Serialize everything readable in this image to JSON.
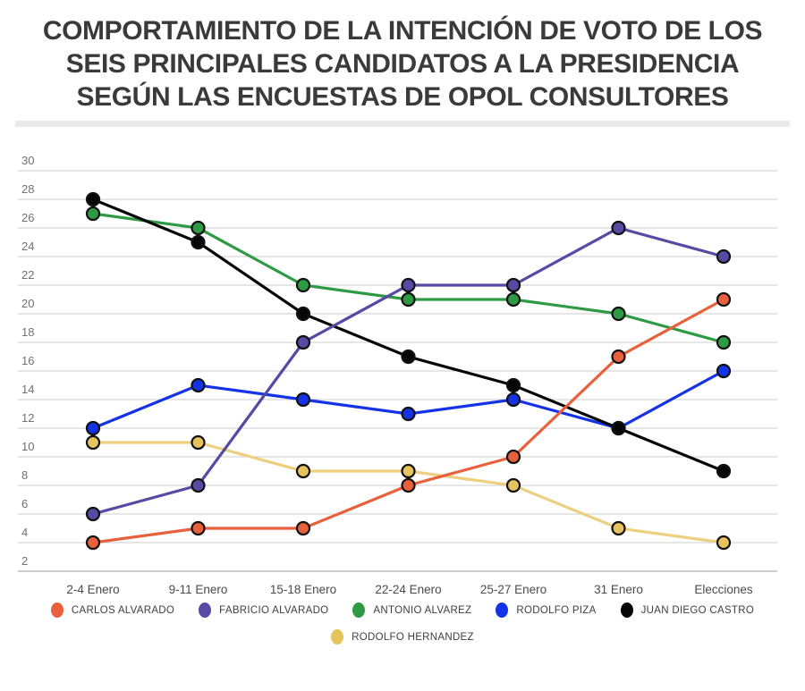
{
  "page": {
    "title": "COMPORTAMIENTO DE LA INTENCIÓN DE VOTO DE LOS\nSEIS PRINCIPALES CANDIDATOS A LA PRESIDENCIA\nSEGÚN LAS ENCUESTAS DE OPOL CONSULTORES"
  },
  "chart_data": {
    "type": "line",
    "title": "Comportamiento de la intención de voto de los seis principales candidatos a la presidencia según las encuestas de OPOL Consultores",
    "categories": [
      "2-4 Enero",
      "9-11 Enero",
      "15-18 Enero",
      "22-24 Enero",
      "25-27 Enero",
      "31 Enero",
      "Elecciones"
    ],
    "series": [
      {
        "name": "CARLOS ALVARADO",
        "color": "#E8613C",
        "values": [
          4,
          5,
          5,
          8,
          10,
          17,
          21
        ]
      },
      {
        "name": "FABRICIO ALVARADO",
        "color": "#564AA5",
        "values": [
          6,
          8,
          18,
          22,
          22,
          26,
          24
        ]
      },
      {
        "name": "ANTONIO ALVAREZ",
        "color": "#2E9B44",
        "values": [
          27,
          26,
          22,
          21,
          21,
          20,
          18
        ]
      },
      {
        "name": "RODOLFO PIZA",
        "color": "#1432E6",
        "values": [
          12,
          15,
          14,
          13,
          14,
          12,
          16
        ]
      },
      {
        "name": "JUAN DIEGO CASTRO",
        "color": "#060606",
        "values": [
          28,
          25,
          20,
          17,
          15,
          12,
          9
        ]
      },
      {
        "name": "RODOLFO HERNANDEZ",
        "color": "#E6C35D",
        "line_color": "#EDCF7F",
        "values": [
          11,
          11,
          9,
          9,
          8,
          5,
          4
        ]
      }
    ],
    "draw_order": [
      5,
      2,
      3,
      4,
      1,
      0
    ],
    "ylim": [
      2,
      30
    ],
    "yticks": [
      2,
      4,
      6,
      8,
      10,
      12,
      14,
      16,
      18,
      20,
      22,
      24,
      26,
      28,
      30
    ],
    "xlabel": "",
    "ylabel": "",
    "grid": true,
    "legend_position": "bottom"
  },
  "colors": {
    "grid": "#cccccc",
    "axis_bottom": "#999999",
    "ytick_label": "#717171",
    "xtick_label": "#4a4a4a",
    "dot_stroke": "#111111",
    "title": "#3a3a3a",
    "divider": "#e9e9e9",
    "legend_text": "#3e3e3e",
    "background": "#ffffff"
  }
}
